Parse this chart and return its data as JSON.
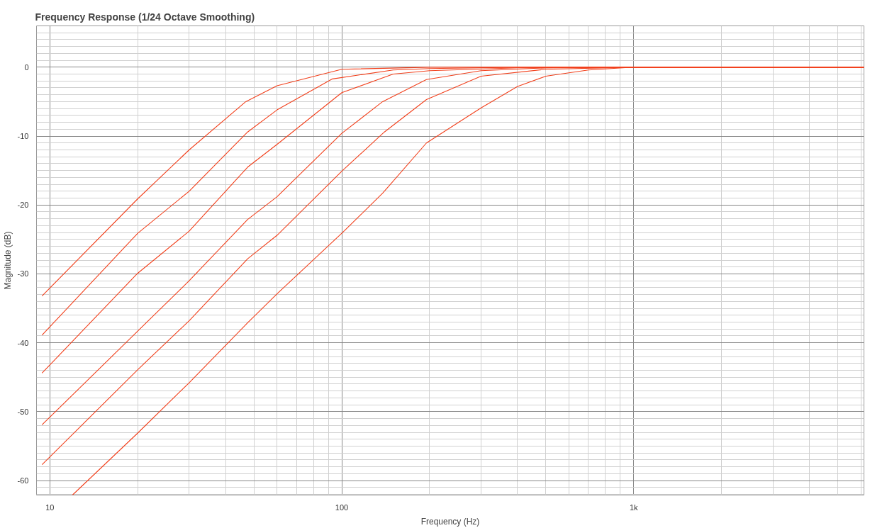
{
  "chart_data": {
    "type": "line",
    "title": "Frequency Response (1/24 Octave Smoothing)",
    "xlabel": "Frequency (Hz)",
    "ylabel": "Magnitude (dB)",
    "log": "x",
    "grid": true,
    "line_style": "solid",
    "xlim": [
      9,
      6150
    ],
    "ylim": [
      -62.1,
      6
    ],
    "xticks": [
      10,
      100,
      {
        "value": 1000,
        "label": "1k"
      },
      {
        "value": 20,
        "label": null
      },
      {
        "value": 30,
        "label": null
      },
      {
        "value": 40,
        "label": null
      },
      {
        "value": 50,
        "label": null
      },
      {
        "value": 60,
        "label": null
      },
      {
        "value": 70,
        "label": null
      },
      {
        "value": 80,
        "label": null
      },
      {
        "value": 90,
        "label": null
      },
      {
        "value": 200,
        "label": null
      },
      {
        "value": 300,
        "label": null
      },
      {
        "value": 400,
        "label": null
      },
      {
        "value": 500,
        "label": null
      },
      {
        "value": 600,
        "label": null
      },
      {
        "value": 700,
        "label": null
      },
      {
        "value": 800,
        "label": null
      },
      {
        "value": 900,
        "label": null
      },
      {
        "value": 2000,
        "label": null
      },
      {
        "value": 3000,
        "label": null
      },
      {
        "value": 4000,
        "label": null
      },
      {
        "value": 5000,
        "label": null
      },
      {
        "value": 6000,
        "label": null
      }
    ],
    "yticks": [
      0,
      -10,
      -20,
      -30,
      -40,
      -50,
      -60,
      {
        "value": 5,
        "label": null
      },
      {
        "value": 4,
        "label": null
      },
      {
        "value": 3,
        "label": null
      },
      {
        "value": 2,
        "label": null
      },
      {
        "value": 1,
        "label": null
      },
      {
        "value": -1,
        "label": null
      },
      {
        "value": -2,
        "label": null
      },
      {
        "value": -3,
        "label": null
      },
      {
        "value": -4,
        "label": null
      },
      {
        "value": -5,
        "label": null
      },
      {
        "value": -6,
        "label": null
      },
      {
        "value": -7,
        "label": null
      },
      {
        "value": -8,
        "label": null
      },
      {
        "value": -9,
        "label": null
      },
      {
        "value": -11,
        "label": null
      },
      {
        "value": -12,
        "label": null
      },
      {
        "value": -13,
        "label": null
      },
      {
        "value": -14,
        "label": null
      },
      {
        "value": -15,
        "label": null
      },
      {
        "value": -16,
        "label": null
      },
      {
        "value": -17,
        "label": null
      },
      {
        "value": -18,
        "label": null
      },
      {
        "value": -19,
        "label": null
      },
      {
        "value": -21,
        "label": null
      },
      {
        "value": -22,
        "label": null
      },
      {
        "value": -23,
        "label": null
      },
      {
        "value": -24,
        "label": null
      },
      {
        "value": -25,
        "label": null
      },
      {
        "value": -26,
        "label": null
      },
      {
        "value": -27,
        "label": null
      },
      {
        "value": -28,
        "label": null
      },
      {
        "value": -29,
        "label": null
      },
      {
        "value": -31,
        "label": null
      },
      {
        "value": -32,
        "label": null
      },
      {
        "value": -33,
        "label": null
      },
      {
        "value": -34,
        "label": null
      },
      {
        "value": -35,
        "label": null
      },
      {
        "value": -36,
        "label": null
      },
      {
        "value": -37,
        "label": null
      },
      {
        "value": -38,
        "label": null
      },
      {
        "value": -39,
        "label": null
      },
      {
        "value": -41,
        "label": null
      },
      {
        "value": -42,
        "label": null
      },
      {
        "value": -43,
        "label": null
      },
      {
        "value": -44,
        "label": null
      },
      {
        "value": -45,
        "label": null
      },
      {
        "value": -46,
        "label": null
      },
      {
        "value": -47,
        "label": null
      },
      {
        "value": -48,
        "label": null
      },
      {
        "value": -49,
        "label": null
      },
      {
        "value": -51,
        "label": null
      },
      {
        "value": -52,
        "label": null
      },
      {
        "value": -53,
        "label": null
      },
      {
        "value": -54,
        "label": null
      },
      {
        "value": -55,
        "label": null
      },
      {
        "value": -56,
        "label": null
      },
      {
        "value": -57,
        "label": null
      },
      {
        "value": -58,
        "label": null
      },
      {
        "value": -59,
        "label": null
      },
      {
        "value": -61,
        "label": null
      },
      {
        "value": -62,
        "label": null
      }
    ],
    "series": [
      {
        "color": "#f2401c",
        "x": [
          9.4,
          20,
          30,
          46.9,
          60,
          100,
          200,
          400,
          1000,
          6150
        ],
        "values": [
          -33.2,
          -19.1,
          -12.0,
          -5.0,
          -2.7,
          -0.3,
          0,
          0,
          0,
          0
        ]
      },
      {
        "color": "#f2401c",
        "x": [
          9.4,
          20,
          30,
          47.6,
          60,
          92.9,
          150,
          200,
          400,
          1000,
          6150
        ],
        "values": [
          -38.9,
          -24.1,
          -18.0,
          -9.4,
          -6.2,
          -1.7,
          -0.4,
          -0.2,
          0,
          0,
          0
        ]
      },
      {
        "color": "#f2401c",
        "x": [
          9.4,
          20,
          30,
          47.6,
          60,
          100,
          150,
          200,
          400,
          1000,
          6150
        ],
        "values": [
          -44.4,
          -29.9,
          -23.8,
          -14.5,
          -11.2,
          -3.7,
          -1.0,
          -0.5,
          -0.1,
          0,
          0
        ]
      },
      {
        "color": "#f2401c",
        "x": [
          9.4,
          20,
          30,
          47.6,
          60,
          100,
          138,
          195,
          300,
          500,
          1000,
          6150
        ],
        "values": [
          -51.9,
          -38.3,
          -31.0,
          -22.1,
          -18.8,
          -9.6,
          -5.0,
          -1.8,
          -0.5,
          -0.1,
          0,
          0
        ]
      },
      {
        "color": "#f2401c",
        "x": [
          9.4,
          20,
          30,
          47.6,
          60,
          100,
          140,
          195,
          300,
          500,
          1000,
          6150
        ],
        "values": [
          -57.7,
          -43.9,
          -36.8,
          -27.8,
          -24.4,
          -15.1,
          -9.4,
          -4.7,
          -1.3,
          -0.3,
          0,
          0
        ]
      },
      {
        "color": "#f2401c",
        "x": [
          11.95,
          20,
          30,
          47.6,
          60,
          100,
          138,
          195,
          300,
          400,
          500,
          700,
          1000,
          6150
        ],
        "values": [
          -62.1,
          -53.1,
          -45.8,
          -37.1,
          -32.9,
          -24.1,
          -18.3,
          -11.0,
          -5.9,
          -2.8,
          -1.3,
          -0.4,
          0,
          0
        ]
      }
    ]
  }
}
